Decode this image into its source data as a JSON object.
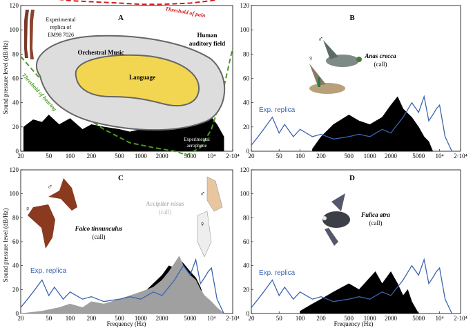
{
  "chart_data": [
    {
      "panel": "A",
      "type": "area",
      "xscale": "log",
      "xlim": [
        20,
        20000
      ],
      "ylim": [
        0,
        120
      ],
      "x_ticks": [
        "20",
        "50",
        "100",
        "200",
        "500",
        "1000",
        "2000",
        "5000",
        "10^4",
        "2·10^4"
      ],
      "y_ticks": [
        "0",
        "20",
        "40",
        "60",
        "80",
        "100",
        "120"
      ],
      "ylabel": "Sound pressure level (dB/Hz)",
      "annotations": {
        "threshold_pain": "Threshold of pain",
        "threshold_hearing": "Threshold of hearing",
        "orchestral": "Orchestral Music",
        "language": "Language",
        "human_field_1": "Human",
        "human_field_2": "auditory field",
        "replica_1": "Experimental",
        "replica_2": "replica of",
        "replica_3": "EM98 7026",
        "aerophone_1": "Experimental",
        "aerophone_2": "aerophone"
      },
      "threshold_of_pain": {
        "x": [
          20,
          50,
          100,
          500,
          1000,
          2000,
          5000,
          10000,
          20000
        ],
        "y": [
          128,
          126,
          124,
          122,
          121,
          121,
          122,
          124,
          128
        ]
      },
      "threshold_of_hearing": {
        "x": [
          20,
          40,
          80,
          150,
          300,
          700,
          1500,
          3000,
          4500,
          7000,
          10000,
          14000,
          20000
        ],
        "y": [
          78,
          58,
          42,
          30,
          18,
          7,
          3,
          0,
          -3,
          3,
          18,
          45,
          85
        ]
      },
      "series": [
        {
          "name": "Experimental aerophone",
          "color": "#000000",
          "x": [
            22,
            30,
            40,
            50,
            70,
            100,
            150,
            200,
            300,
            500,
            700,
            1000,
            1500,
            2000,
            2500,
            3000,
            3500,
            4000,
            5000,
            6000,
            8000,
            10000,
            12000,
            15000
          ],
          "y": [
            20,
            26,
            24,
            30,
            22,
            27,
            18,
            22,
            20,
            18,
            16,
            18,
            22,
            25,
            42,
            55,
            50,
            58,
            42,
            48,
            30,
            28,
            22,
            12
          ]
        }
      ]
    },
    {
      "panel": "B",
      "type": "area",
      "xscale": "log",
      "xlim": [
        20,
        20000
      ],
      "ylim": [
        0,
        120
      ],
      "x_ticks": [
        "20",
        "50",
        "100",
        "200",
        "500",
        "1000",
        "2000",
        "5000",
        "10^4",
        "2·10^4"
      ],
      "y_ticks": [
        "0",
        "20",
        "40",
        "60",
        "80",
        "100",
        "120"
      ],
      "species": "Anas crecca",
      "sub": "(call)",
      "legend_replica": "Exp. replica",
      "male": "♂",
      "female": "♀",
      "series": [
        {
          "name": "Anas crecca (call)",
          "color": "#000000",
          "x": [
            150,
            200,
            300,
            500,
            700,
            1000,
            1500,
            2000,
            2500,
            3000,
            4000,
            5000,
            6000,
            7000,
            8000
          ],
          "y": [
            2,
            12,
            22,
            30,
            25,
            22,
            28,
            38,
            45,
            35,
            28,
            20,
            12,
            8,
            0
          ]
        },
        {
          "name": "Exp. replica",
          "color": "#3a64b0",
          "x": [
            20,
            25,
            30,
            40,
            50,
            60,
            80,
            100,
            150,
            200,
            300,
            500,
            700,
            1000,
            1500,
            2000,
            3000,
            4000,
            5000,
            6000,
            7000,
            8000,
            9000,
            10000,
            12000,
            15000
          ],
          "y": [
            5,
            12,
            18,
            28,
            15,
            22,
            12,
            18,
            12,
            14,
            10,
            12,
            14,
            12,
            18,
            15,
            28,
            40,
            32,
            45,
            25,
            30,
            35,
            38,
            12,
            0
          ]
        }
      ]
    },
    {
      "panel": "C",
      "type": "area",
      "xscale": "log",
      "xlim": [
        20,
        20000
      ],
      "ylim": [
        0,
        120
      ],
      "x_ticks": [
        "20",
        "50",
        "100",
        "200",
        "500",
        "1000",
        "2000",
        "5000",
        "10^4",
        "2·10^4"
      ],
      "y_ticks": [
        "0",
        "20",
        "40",
        "60",
        "80",
        "100",
        "120"
      ],
      "ylabel": "Sound pressure level (dB/Hz)",
      "xlabel": "Frequency (Hz)",
      "species": "Falco tinnunculus",
      "sub": "(call)",
      "species2": "Accipiter nisus",
      "sub2": "(call)",
      "legend_replica": "Exp. replica",
      "male": "♂",
      "female": "♀",
      "series": [
        {
          "name": "Falco tinnunculus (call)",
          "color": "#000000",
          "x": [
            300,
            500,
            700,
            1000,
            1500,
            2000,
            2500,
            3000,
            3500,
            4000,
            5000,
            6000,
            7000,
            8000,
            10000
          ],
          "y": [
            2,
            8,
            12,
            15,
            25,
            32,
            40,
            38,
            45,
            42,
            35,
            30,
            22,
            12,
            2
          ]
        },
        {
          "name": "Accipiter nisus (call)",
          "color": "#a0a0a0",
          "x": [
            20,
            40,
            70,
            100,
            150,
            200,
            300,
            500,
            1000,
            1500,
            2000,
            2500,
            3000,
            3500,
            4000,
            5000,
            6000,
            7000,
            8000,
            10000,
            12000,
            15000
          ],
          "y": [
            0,
            2,
            5,
            8,
            5,
            10,
            8,
            12,
            18,
            22,
            28,
            35,
            42,
            48,
            40,
            32,
            28,
            20,
            15,
            10,
            5,
            0
          ]
        },
        {
          "name": "Exp. replica",
          "color": "#3a64b0",
          "x": [
            20,
            25,
            30,
            40,
            50,
            60,
            80,
            100,
            150,
            200,
            300,
            500,
            700,
            1000,
            1500,
            2000,
            3000,
            4000,
            5000,
            6000,
            7000,
            8000,
            9000,
            10000,
            12000,
            15000
          ],
          "y": [
            5,
            12,
            18,
            28,
            15,
            22,
            12,
            18,
            12,
            14,
            10,
            12,
            14,
            12,
            18,
            15,
            28,
            40,
            32,
            45,
            25,
            30,
            35,
            38,
            12,
            0
          ]
        }
      ]
    },
    {
      "panel": "D",
      "type": "area",
      "xscale": "log",
      "xlim": [
        20,
        20000
      ],
      "ylim": [
        0,
        120
      ],
      "x_ticks": [
        "20",
        "50",
        "100",
        "200",
        "500",
        "1000",
        "2000",
        "5000",
        "10^4",
        "2·10^4"
      ],
      "y_ticks": [
        "0",
        "20",
        "40",
        "60",
        "80",
        "100",
        "120"
      ],
      "xlabel": "Frequency (Hz)",
      "species": "Fulica atra",
      "sub": "(call)",
      "legend_replica": "Exp. replica",
      "series": [
        {
          "name": "Fulica atra (call)",
          "color": "#000000",
          "x": [
            100,
            150,
            200,
            300,
            500,
            700,
            1000,
            1200,
            1500,
            2000,
            2500,
            3000,
            3500,
            4000,
            5000
          ],
          "y": [
            2,
            8,
            12,
            18,
            25,
            20,
            30,
            35,
            25,
            35,
            25,
            15,
            20,
            10,
            0
          ]
        },
        {
          "name": "Exp. replica",
          "color": "#3a64b0",
          "x": [
            20,
            25,
            30,
            40,
            50,
            60,
            80,
            100,
            150,
            200,
            300,
            500,
            700,
            1000,
            1500,
            2000,
            3000,
            4000,
            5000,
            6000,
            7000,
            8000,
            9000,
            10000,
            12000,
            15000
          ],
          "y": [
            5,
            12,
            18,
            28,
            15,
            22,
            12,
            18,
            12,
            14,
            10,
            12,
            14,
            12,
            18,
            15,
            28,
            40,
            32,
            45,
            25,
            30,
            35,
            38,
            12,
            0
          ]
        }
      ]
    }
  ]
}
